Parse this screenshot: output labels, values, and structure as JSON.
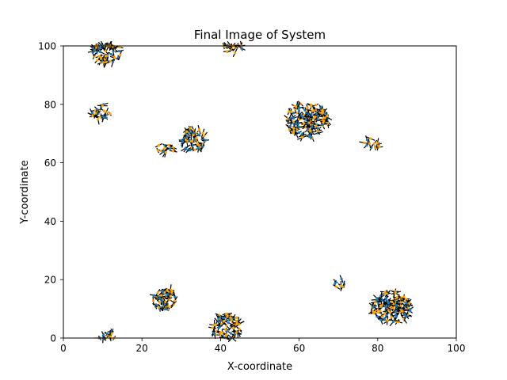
{
  "chart_data": {
    "type": "scatter",
    "title": "Final Image of System",
    "xlabel": "X-coordinate",
    "ylabel": "Y-coordinate",
    "xlim": [
      0,
      100
    ],
    "ylim": [
      0,
      100
    ],
    "xticks": [
      "0",
      "20",
      "40",
      "60",
      "80",
      "100"
    ],
    "yticks": [
      "0",
      "20",
      "40",
      "60",
      "80",
      "100"
    ],
    "grid": false,
    "legend": "none",
    "colors": {
      "point_edge": "#1f77b4",
      "point_fill": "#ffa500",
      "orientation_stroke": "#000000"
    },
    "clusters": [
      {
        "x": 11,
        "y": 98,
        "count": 60
      },
      {
        "x": 43,
        "y": 100,
        "count": 25
      },
      {
        "x": 9.5,
        "y": 77.5,
        "count": 22
      },
      {
        "x": 62,
        "y": 74.5,
        "count": 160
      },
      {
        "x": 33,
        "y": 68,
        "count": 55
      },
      {
        "x": 26,
        "y": 64.5,
        "count": 14
      },
      {
        "x": 78.5,
        "y": 66,
        "count": 12
      },
      {
        "x": 26,
        "y": 13,
        "count": 48
      },
      {
        "x": 70,
        "y": 18.5,
        "count": 8
      },
      {
        "x": 83.5,
        "y": 10.5,
        "count": 130
      },
      {
        "x": 41.5,
        "y": 4,
        "count": 70
      },
      {
        "x": 11,
        "y": 0.5,
        "count": 15
      }
    ]
  }
}
